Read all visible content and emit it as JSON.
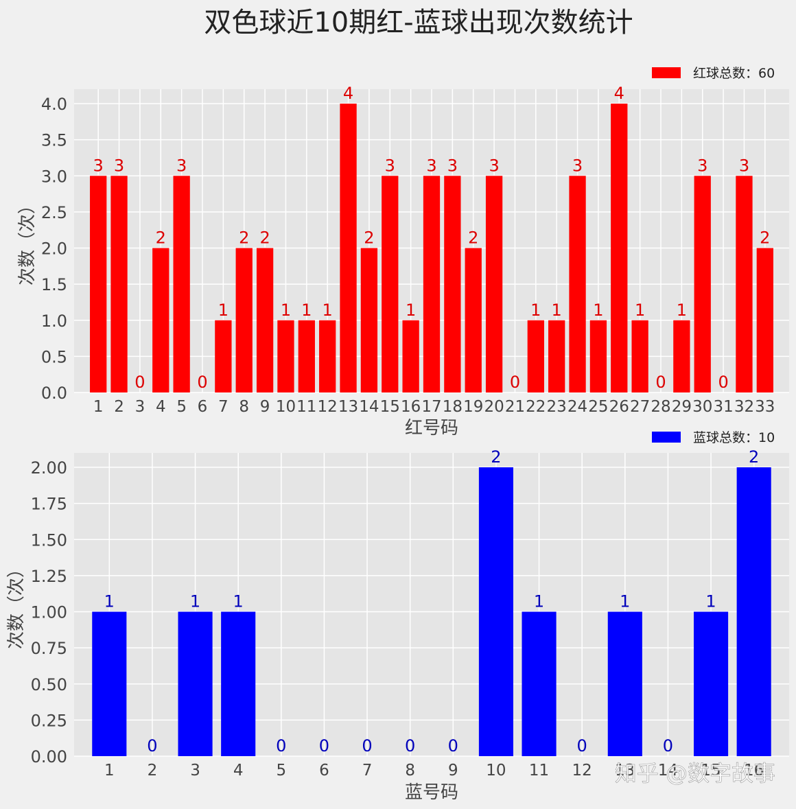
{
  "figure_title": "双色球近10期红-蓝球出现次数统计",
  "watermark": "知乎 @数字故事",
  "chart_data": [
    {
      "type": "bar",
      "name": "red",
      "color": "#ff0000",
      "label_color": "#dd0000",
      "categories": [
        "1",
        "2",
        "3",
        "4",
        "5",
        "6",
        "7",
        "8",
        "9",
        "10",
        "11",
        "12",
        "13",
        "14",
        "15",
        "16",
        "17",
        "18",
        "19",
        "20",
        "21",
        "22",
        "23",
        "24",
        "25",
        "26",
        "27",
        "28",
        "29",
        "30",
        "31",
        "32",
        "33"
      ],
      "values": [
        3,
        3,
        0,
        2,
        3,
        0,
        1,
        2,
        2,
        1,
        1,
        1,
        4,
        2,
        3,
        1,
        3,
        3,
        2,
        3,
        0,
        1,
        1,
        3,
        1,
        4,
        1,
        0,
        1,
        3,
        0,
        3,
        2
      ],
      "xlabel": "红号码",
      "ylabel": "次数（次）",
      "ylim": [
        0,
        4.2
      ],
      "yticks": [
        "0.0",
        "0.5",
        "1.0",
        "1.5",
        "2.0",
        "2.5",
        "3.0",
        "3.5",
        "4.0"
      ],
      "legend": "红球总数：60",
      "legend_position": "top-right",
      "grid": true
    },
    {
      "type": "bar",
      "name": "blue",
      "color": "#0000ff",
      "label_color": "#0000bb",
      "categories": [
        "1",
        "2",
        "3",
        "4",
        "5",
        "6",
        "7",
        "8",
        "9",
        "10",
        "11",
        "12",
        "13",
        "14",
        "15",
        "16"
      ],
      "values": [
        1,
        0,
        1,
        1,
        0,
        0,
        0,
        0,
        0,
        2,
        1,
        0,
        1,
        0,
        1,
        2
      ],
      "xlabel": "蓝号码",
      "ylabel": "次数（次）",
      "ylim": [
        0,
        2.1
      ],
      "yticks": [
        "0.00",
        "0.25",
        "0.50",
        "0.75",
        "1.00",
        "1.25",
        "1.50",
        "1.75",
        "2.00"
      ],
      "legend": "蓝球总数：10",
      "legend_position": "top-right",
      "grid": true
    }
  ]
}
